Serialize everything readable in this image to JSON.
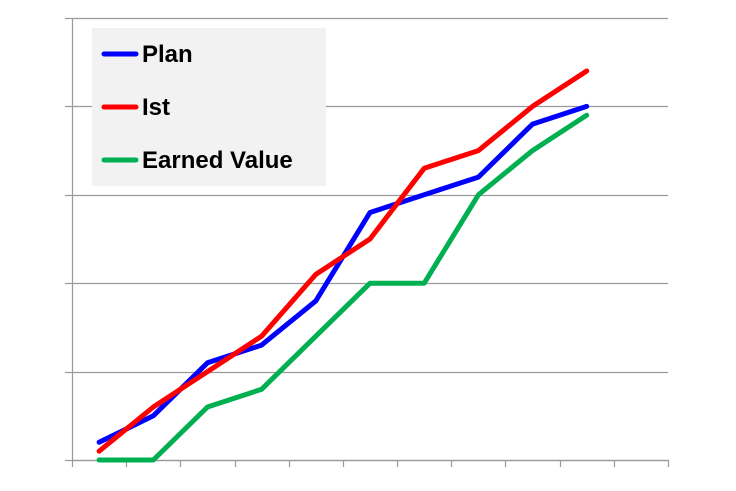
{
  "chart_data": {
    "type": "line",
    "x": [
      0,
      1,
      2,
      3,
      4,
      5,
      6,
      7,
      8,
      9,
      10
    ],
    "ylim": [
      0,
      100
    ],
    "yticks": [
      0,
      20,
      40,
      60,
      80,
      100
    ],
    "grid": true,
    "legend": "top-left",
    "series": [
      {
        "name": "Plan",
        "color": "#0000ff",
        "values": [
          4,
          10,
          22,
          26,
          36,
          56,
          60,
          64,
          76,
          80,
          null
        ]
      },
      {
        "name": "Ist",
        "color": "#ff0000",
        "values": [
          2,
          12,
          20,
          28,
          42,
          50,
          66,
          70,
          80,
          88,
          null
        ]
      },
      {
        "name": "Earned Value",
        "color": "#00b050",
        "values": [
          0,
          0,
          12,
          16,
          28,
          40,
          40,
          60,
          70,
          78,
          null
        ]
      }
    ]
  }
}
